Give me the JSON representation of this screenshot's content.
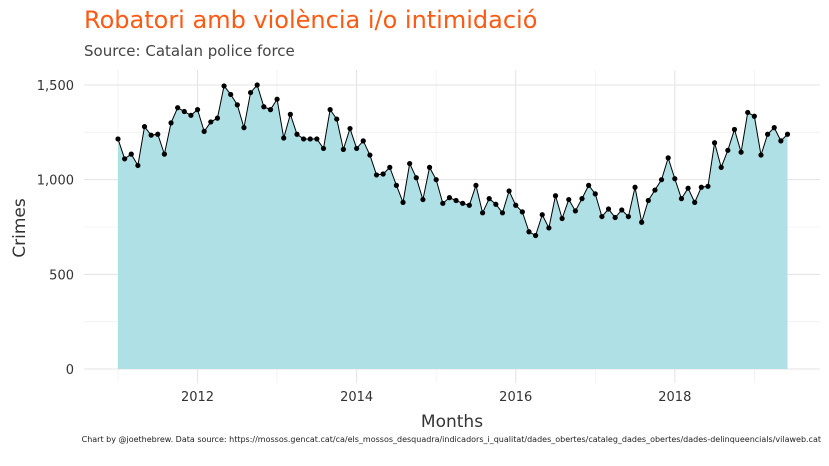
{
  "chart_data": {
    "type": "area",
    "title": "Robatori amb violència i/o intimidació",
    "subtitle": "Source: Catalan police force",
    "xlabel": "Months",
    "ylabel": "Crimes",
    "caption": "Chart by @joethebrew. Data source: https://mossos.gencat.cat/ca/els_mossos_desquadra/indicadors_i_qualitat/dades_obertes/cataleg_dades_obertes/dades-delinqueencials/vilaweb.cat",
    "x_start": "2011-01",
    "x_ticks": [
      "2012",
      "2014",
      "2016",
      "2018"
    ],
    "y_ticks": [
      "0",
      "500",
      "1,000",
      "1,500"
    ],
    "ylim": [
      0,
      1550
    ],
    "grid": true,
    "legend": "none",
    "fill_color": "#aadee4",
    "line_color": "#000000",
    "values": [
      1215,
      1110,
      1135,
      1075,
      1280,
      1235,
      1240,
      1135,
      1300,
      1380,
      1360,
      1340,
      1370,
      1255,
      1305,
      1325,
      1495,
      1450,
      1395,
      1275,
      1460,
      1500,
      1385,
      1370,
      1425,
      1220,
      1345,
      1240,
      1215,
      1215,
      1215,
      1165,
      1370,
      1320,
      1160,
      1270,
      1165,
      1205,
      1130,
      1025,
      1030,
      1065,
      970,
      880,
      1085,
      1010,
      895,
      1065,
      1000,
      875,
      905,
      890,
      875,
      865,
      970,
      825,
      900,
      870,
      825,
      940,
      865,
      830,
      725,
      705,
      815,
      745,
      915,
      795,
      895,
      835,
      900,
      970,
      925,
      805,
      845,
      800,
      840,
      805,
      960,
      775,
      890,
      945,
      1000,
      1115,
      1005,
      900,
      955,
      880,
      960,
      965,
      1195,
      1065,
      1155,
      1265,
      1145,
      1355,
      1335,
      1130,
      1240,
      1275,
      1205,
      1240
    ]
  }
}
